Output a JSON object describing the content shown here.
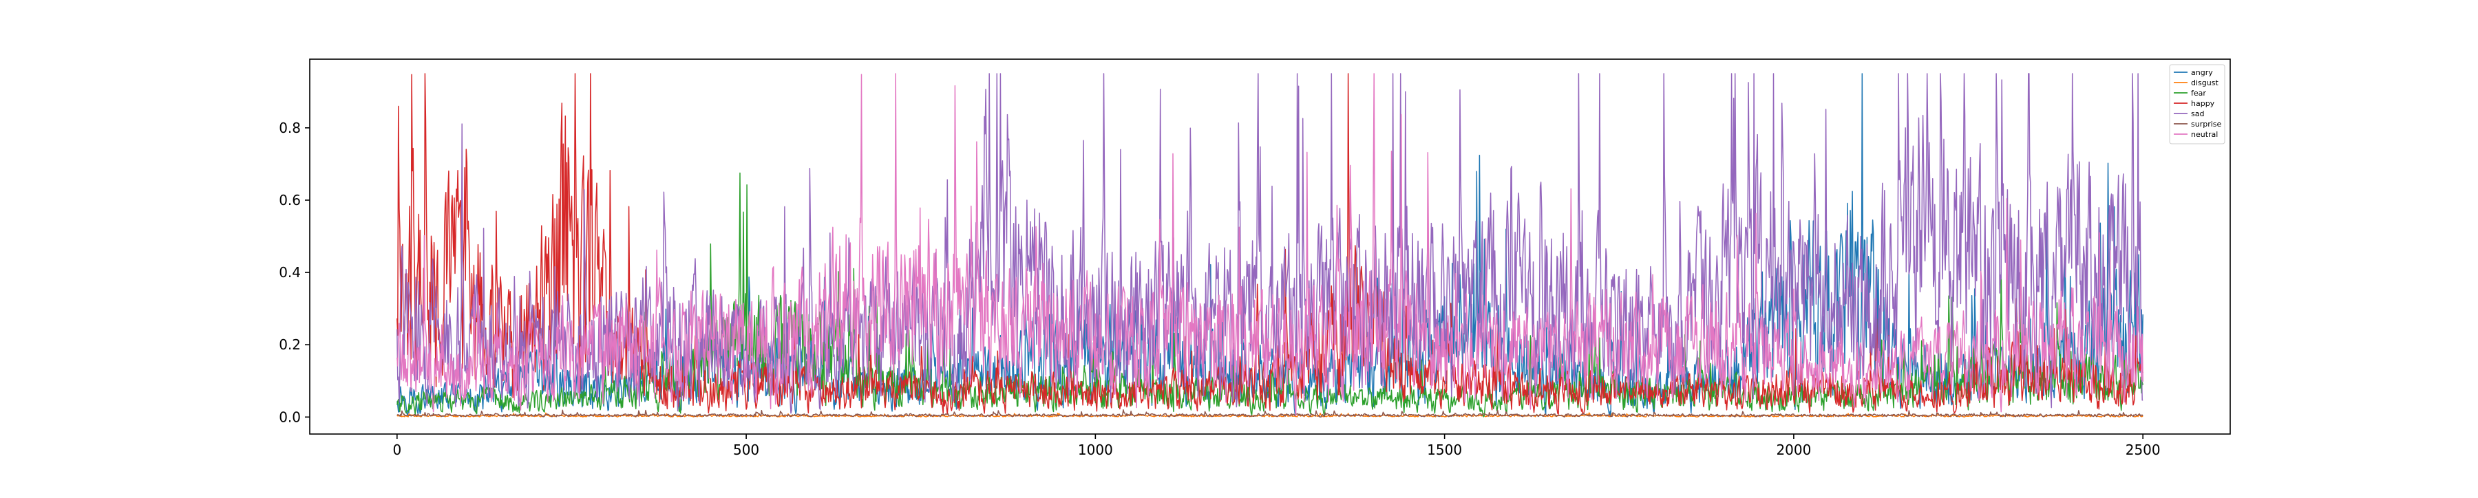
{
  "chart_data": {
    "type": "line",
    "title": "",
    "xlabel": "",
    "ylabel": "",
    "xlim": [
      -125,
      2625
    ],
    "ylim": [
      -0.047,
      0.99
    ],
    "x_ticks": [
      0,
      500,
      1000,
      1500,
      2000,
      2500
    ],
    "x_tick_labels": [
      "0",
      "500",
      "1000",
      "1500",
      "2000",
      "2500"
    ],
    "y_ticks": [
      0.0,
      0.2,
      0.4,
      0.6,
      0.8
    ],
    "y_tick_labels": [
      "0.0",
      "0.2",
      "0.4",
      "0.6",
      "0.8"
    ],
    "grid": false,
    "legend_position": "top-right",
    "x_range": [
      0,
      2500
    ],
    "n_points": 2501,
    "series": [
      {
        "name": "angry",
        "color": "#1f77b4",
        "profile": [
          [
            0,
            0.06
          ],
          [
            100,
            0.05
          ],
          [
            200,
            0.1
          ],
          [
            300,
            0.08
          ],
          [
            400,
            0.12
          ],
          [
            500,
            0.15
          ],
          [
            600,
            0.1
          ],
          [
            700,
            0.08
          ],
          [
            800,
            0.1
          ],
          [
            900,
            0.15
          ],
          [
            1000,
            0.18
          ],
          [
            1100,
            0.15
          ],
          [
            1200,
            0.12
          ],
          [
            1300,
            0.1
          ],
          [
            1400,
            0.12
          ],
          [
            1500,
            0.2
          ],
          [
            1600,
            0.18
          ],
          [
            1700,
            0.1
          ],
          [
            1800,
            0.08
          ],
          [
            1900,
            0.12
          ],
          [
            2000,
            0.3
          ],
          [
            2050,
            0.35
          ],
          [
            2100,
            0.4
          ],
          [
            2150,
            0.15
          ],
          [
            2200,
            0.1
          ],
          [
            2300,
            0.12
          ],
          [
            2400,
            0.15
          ],
          [
            2500,
            0.25
          ]
        ]
      },
      {
        "name": "disgust",
        "color": "#ff7f0e",
        "profile": [
          [
            0,
            0.003
          ],
          [
            2500,
            0.003
          ]
        ]
      },
      {
        "name": "fear",
        "color": "#2ca02c",
        "profile": [
          [
            0,
            0.04
          ],
          [
            300,
            0.05
          ],
          [
            400,
            0.1
          ],
          [
            500,
            0.2
          ],
          [
            600,
            0.18
          ],
          [
            700,
            0.08
          ],
          [
            800,
            0.06
          ],
          [
            900,
            0.07
          ],
          [
            1000,
            0.08
          ],
          [
            1200,
            0.06
          ],
          [
            1400,
            0.05
          ],
          [
            1600,
            0.05
          ],
          [
            1700,
            0.08
          ],
          [
            1800,
            0.06
          ],
          [
            1900,
            0.07
          ],
          [
            2000,
            0.05
          ],
          [
            2200,
            0.08
          ],
          [
            2300,
            0.12
          ],
          [
            2400,
            0.1
          ],
          [
            2500,
            0.08
          ]
        ]
      },
      {
        "name": "happy",
        "color": "#d62728",
        "profile": [
          [
            0,
            0.3
          ],
          [
            50,
            0.45
          ],
          [
            100,
            0.4
          ],
          [
            150,
            0.2
          ],
          [
            200,
            0.25
          ],
          [
            240,
            0.55
          ],
          [
            300,
            0.3
          ],
          [
            350,
            0.15
          ],
          [
            400,
            0.1
          ],
          [
            600,
            0.08
          ],
          [
            800,
            0.06
          ],
          [
            850,
            0.08
          ],
          [
            1000,
            0.06
          ],
          [
            1200,
            0.08
          ],
          [
            1300,
            0.15
          ],
          [
            1380,
            0.3
          ],
          [
            1450,
            0.1
          ],
          [
            1600,
            0.08
          ],
          [
            1800,
            0.06
          ],
          [
            2000,
            0.08
          ],
          [
            2200,
            0.06
          ],
          [
            2300,
            0.12
          ],
          [
            2400,
            0.1
          ],
          [
            2500,
            0.08
          ]
        ]
      },
      {
        "name": "sad",
        "color": "#9467bd",
        "profile": [
          [
            0,
            0.25
          ],
          [
            100,
            0.22
          ],
          [
            200,
            0.18
          ],
          [
            300,
            0.2
          ],
          [
            400,
            0.25
          ],
          [
            500,
            0.18
          ],
          [
            600,
            0.2
          ],
          [
            700,
            0.22
          ],
          [
            800,
            0.25
          ],
          [
            850,
            0.4
          ],
          [
            900,
            0.35
          ],
          [
            1000,
            0.3
          ],
          [
            1100,
            0.28
          ],
          [
            1200,
            0.3
          ],
          [
            1300,
            0.28
          ],
          [
            1400,
            0.35
          ],
          [
            1500,
            0.3
          ],
          [
            1600,
            0.35
          ],
          [
            1700,
            0.3
          ],
          [
            1800,
            0.25
          ],
          [
            1900,
            0.35
          ],
          [
            1950,
            0.4
          ],
          [
            2000,
            0.35
          ],
          [
            2100,
            0.3
          ],
          [
            2150,
            0.45
          ],
          [
            2200,
            0.5
          ],
          [
            2300,
            0.35
          ],
          [
            2400,
            0.4
          ],
          [
            2500,
            0.35
          ]
        ]
      },
      {
        "name": "surprise",
        "color": "#8c564b",
        "profile": [
          [
            0,
            0.005
          ],
          [
            2500,
            0.005
          ]
        ]
      },
      {
        "name": "neutral",
        "color": "#e377c2",
        "profile": [
          [
            0,
            0.15
          ],
          [
            100,
            0.12
          ],
          [
            200,
            0.15
          ],
          [
            300,
            0.18
          ],
          [
            400,
            0.2
          ],
          [
            500,
            0.22
          ],
          [
            600,
            0.25
          ],
          [
            650,
            0.35
          ],
          [
            700,
            0.3
          ],
          [
            800,
            0.28
          ],
          [
            900,
            0.25
          ],
          [
            1000,
            0.22
          ],
          [
            1100,
            0.2
          ],
          [
            1200,
            0.22
          ],
          [
            1300,
            0.2
          ],
          [
            1400,
            0.25
          ],
          [
            1500,
            0.2
          ],
          [
            1600,
            0.18
          ],
          [
            1700,
            0.2
          ],
          [
            1800,
            0.18
          ],
          [
            1900,
            0.2
          ],
          [
            2000,
            0.15
          ],
          [
            2100,
            0.12
          ],
          [
            2200,
            0.15
          ],
          [
            2300,
            0.18
          ],
          [
            2400,
            0.2
          ],
          [
            2500,
            0.2
          ]
        ]
      }
    ]
  }
}
